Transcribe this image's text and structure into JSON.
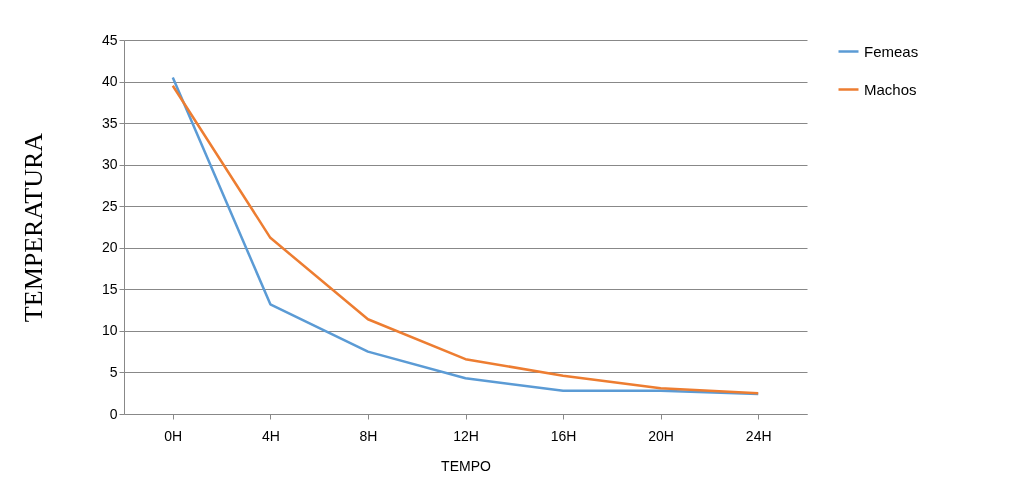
{
  "chart_data": {
    "type": "line",
    "xlabel": "TEMPO",
    "ylabel": "TEMPERATURA",
    "categories": [
      "0H",
      "4H",
      "8H",
      "12H",
      "16H",
      "20H",
      "24H"
    ],
    "series": [
      {
        "name": "Femeas",
        "color": "#5b9bd5",
        "values": [
          40.5,
          13.2,
          7.5,
          4.3,
          2.8,
          2.8,
          2.4
        ]
      },
      {
        "name": "Machos",
        "color": "#ed7d31",
        "values": [
          39.5,
          21.2,
          11.4,
          6.6,
          4.6,
          3.1,
          2.5
        ]
      }
    ],
    "ylim": [
      0,
      45
    ],
    "yticks": [
      0,
      5,
      10,
      15,
      20,
      25,
      30,
      35,
      40,
      45
    ],
    "grid": "y",
    "legend": "right"
  }
}
